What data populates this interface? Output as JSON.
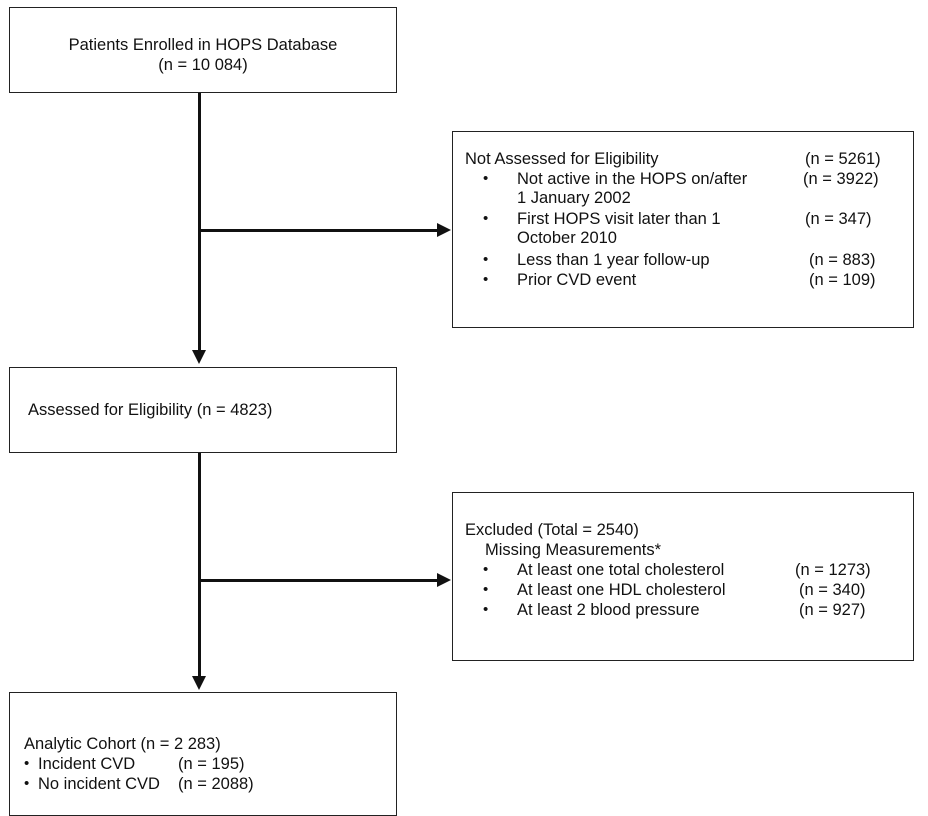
{
  "top_box": {
    "title": "Patients Enrolled in HOPS Database",
    "count": "(n = 10 084)"
  },
  "not_assessed_box": {
    "title": "Not Assessed for Eligibility",
    "count": "(n = 5261)",
    "items": [
      {
        "line1": "Not active in the HOPS on/after",
        "line2": "1 January 2002",
        "count": "(n = 3922)"
      },
      {
        "line1": "First HOPS visit later than 1",
        "line2": "October 2010",
        "count": "(n = 347)"
      },
      {
        "line1": "Less than 1 year follow-up",
        "line2": "",
        "count": "(n = 883)"
      },
      {
        "line1": "Prior CVD event",
        "line2": "",
        "count": "(n = 109)"
      }
    ]
  },
  "assessed_box": {
    "text": "Assessed for Eligibility (n = 4823)"
  },
  "excluded_box": {
    "title": "Excluded (Total = 2540)",
    "subtitle": "Missing Measurements*",
    "items": [
      {
        "label": "At least one total cholesterol",
        "count": "(n = 1273)"
      },
      {
        "label": "At least one HDL cholesterol",
        "count": "(n = 340)"
      },
      {
        "label": "At least 2 blood pressure",
        "count": "(n = 927)"
      }
    ]
  },
  "cohort_box": {
    "title": "Analytic Cohort (n = 2 283)",
    "items": [
      {
        "label": "Incident CVD",
        "count": "(n = 195)"
      },
      {
        "label": "No incident CVD",
        "count": "(n = 2088)"
      }
    ]
  },
  "bullet_char": "•"
}
